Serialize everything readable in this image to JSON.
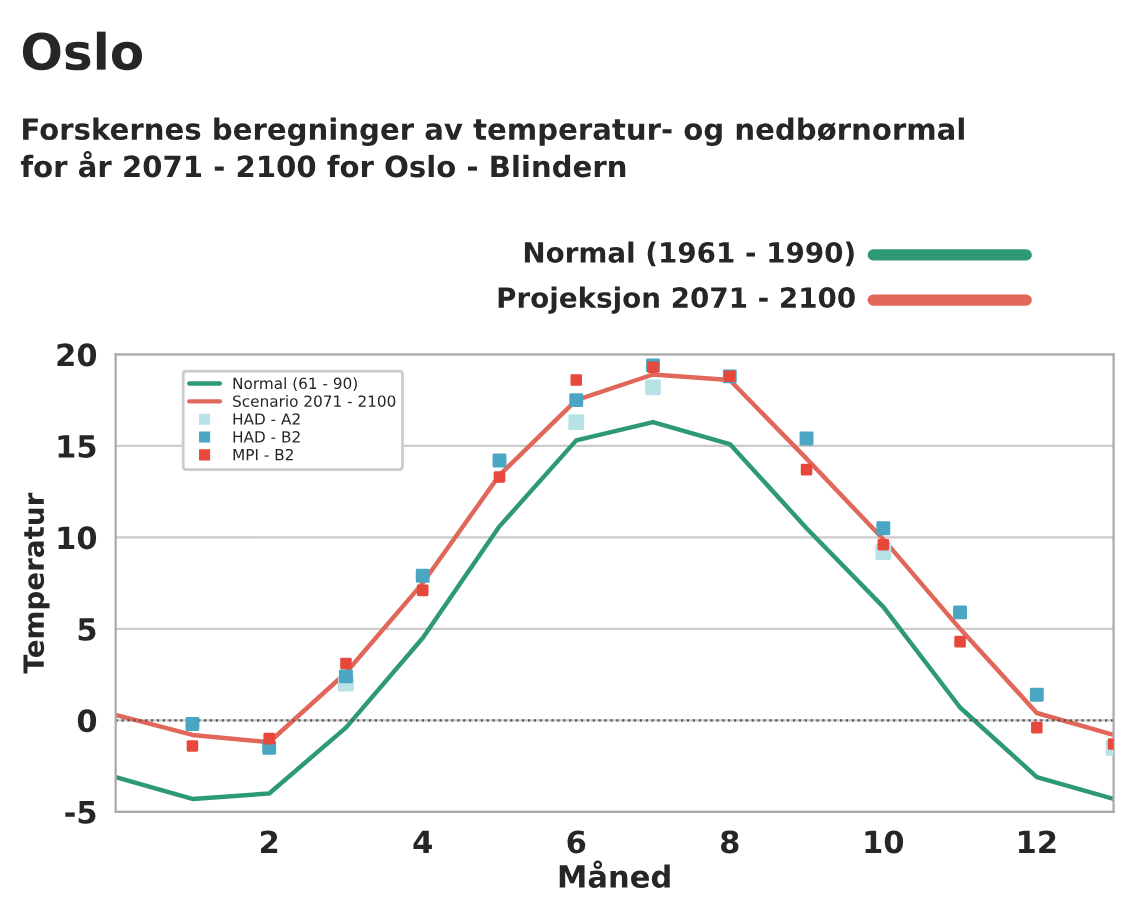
{
  "chart_data": {
    "type": "line",
    "title": "Oslo",
    "subtitle": "Forskernes beregninger av temperatur- og nedbørnormal\nfor år 2071 - 2100 for Oslo - Blindern",
    "annotations": [
      "Normal (1961 - 1990)",
      "Projeksjon 2071 - 2100"
    ],
    "xlabel": "Måned",
    "ylabel": "Temperatur",
    "x": [
      0,
      1,
      2,
      3,
      4,
      5,
      6,
      7,
      8,
      9,
      10,
      11,
      12,
      13
    ],
    "series": [
      {
        "name": "Normal (61 - 90)",
        "marker": "none",
        "color": "#2e9a74",
        "values": [
          -3.1,
          -4.3,
          -4.0,
          -0.4,
          4.5,
          10.6,
          15.3,
          16.3,
          15.1,
          10.5,
          6.2,
          0.7,
          -3.1,
          -4.3
        ]
      },
      {
        "name": "Scenario 2071 - 2100",
        "marker": "none",
        "color": "#e0675a",
        "values": [
          0.3,
          -0.8,
          -1.2,
          2.6,
          7.5,
          13.4,
          17.5,
          18.9,
          18.6,
          14.3,
          9.9,
          5.0,
          0.4,
          -0.8
        ]
      },
      {
        "name": "HAD - A2",
        "type": "scatter",
        "marker": "square",
        "color": "#b8e3e6",
        "x": [
          3,
          6,
          7,
          10,
          13
        ],
        "values": [
          2.0,
          16.3,
          18.2,
          9.2,
          -1.5
        ]
      },
      {
        "name": "HAD - B2",
        "type": "scatter",
        "marker": "square",
        "color": "#4aa6c2",
        "x": [
          1,
          2,
          3,
          4,
          5,
          6,
          7,
          8,
          9,
          10,
          11,
          12
        ],
        "values": [
          -0.2,
          -1.5,
          2.4,
          7.9,
          14.2,
          17.5,
          19.4,
          18.8,
          15.4,
          10.5,
          5.9,
          1.4
        ]
      },
      {
        "name": "MPI - B2",
        "type": "scatter",
        "marker": "square",
        "color": "#e8473c",
        "x": [
          1,
          2,
          3,
          4,
          5,
          6,
          7,
          8,
          9,
          10,
          11,
          12,
          13
        ],
        "values": [
          -1.4,
          -1.0,
          3.1,
          7.1,
          13.3,
          18.6,
          19.3,
          18.8,
          13.7,
          9.6,
          4.3,
          -0.4,
          -1.3
        ]
      }
    ],
    "xlim": [
      0,
      13
    ],
    "xticks": [
      2,
      4,
      6,
      8,
      10,
      12
    ],
    "ylim": [
      -5,
      20
    ],
    "yticks": [
      -5,
      0,
      5,
      10,
      15,
      20
    ],
    "ref_lines": [
      {
        "axis": "y",
        "value": 0,
        "color": "#555555",
        "line_style": "dotted"
      }
    ],
    "grid": "y",
    "legend": "top left",
    "line_style": "solid"
  }
}
